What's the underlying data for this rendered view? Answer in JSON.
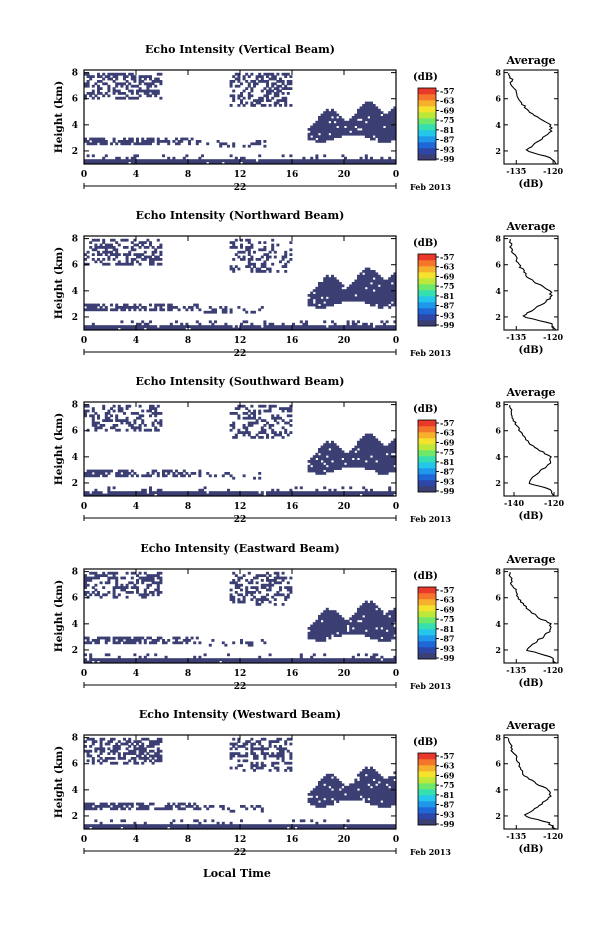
{
  "figure": {
    "xlabel": "Local Time",
    "date_label": "22",
    "month_label": "Feb 2013",
    "ylabel": "Height (km)",
    "colorbar_unit": "(dB)",
    "colorbar_ticks": [
      "-57",
      "-63",
      "-69",
      "-75",
      "-81",
      "-87",
      "-93",
      "-99"
    ],
    "colorscale": [
      "#3c3f73",
      "#2e46a8",
      "#1f66d6",
      "#1f98ec",
      "#22c7ea",
      "#35dfb0",
      "#6ee86b",
      "#bde83a",
      "#f4e22d",
      "#f7b02c",
      "#f5752b",
      "#e9392b"
    ],
    "mask_color": "#3c3f73"
  },
  "chart_data": [
    {
      "type": "heatmap",
      "title": "Echo Intensity (Vertical Beam)",
      "x_ticks": [
        "0",
        "4",
        "8",
        "12",
        "16",
        "20",
        "0"
      ],
      "y_ticks": [
        "2",
        "4",
        "6",
        "8"
      ],
      "xlim": [
        0,
        24
      ],
      "ylim": [
        1,
        8.2
      ],
      "profile": {
        "title": "Average",
        "xlabel": "(dB)",
        "x_ticks": [
          "-135",
          "-120"
        ],
        "xlim": [
          -140,
          -118
        ],
        "y_ticks": [
          "2",
          "4",
          "6",
          "8"
        ],
        "height_km": [
          1,
          1.5,
          2,
          2.5,
          3,
          3.5,
          4,
          4.5,
          5,
          5.5,
          6,
          6.5,
          7,
          7.5,
          8
        ],
        "db": [
          -119,
          -121,
          -131,
          -128,
          -124,
          -121,
          -121,
          -126,
          -130,
          -132,
          -134,
          -135,
          -137,
          -137,
          -138
        ]
      }
    },
    {
      "type": "heatmap",
      "title": "Echo Intensity (Northward Beam)",
      "x_ticks": [
        "0",
        "4",
        "8",
        "12",
        "16",
        "20",
        "0"
      ],
      "y_ticks": [
        "2",
        "4",
        "6",
        "8"
      ],
      "xlim": [
        0,
        24
      ],
      "ylim": [
        1,
        8.2
      ],
      "profile": {
        "title": "Average",
        "xlabel": "(dB)",
        "x_ticks": [
          "-135",
          "-120"
        ],
        "xlim": [
          -140,
          -118
        ],
        "y_ticks": [
          "2",
          "4",
          "6",
          "8"
        ],
        "height_km": [
          1,
          1.5,
          2,
          2.5,
          3,
          3.5,
          4,
          4.5,
          5,
          5.5,
          6,
          6.5,
          7,
          7.5,
          8
        ],
        "db": [
          -119,
          -121,
          -132,
          -129,
          -124,
          -121,
          -121,
          -126,
          -130,
          -132,
          -134,
          -135,
          -137,
          -137,
          -138
        ]
      }
    },
    {
      "type": "heatmap",
      "title": "Echo Intensity (Southward Beam)",
      "x_ticks": [
        "0",
        "4",
        "8",
        "12",
        "16",
        "20",
        "0"
      ],
      "y_ticks": [
        "2",
        "4",
        "6",
        "8"
      ],
      "xlim": [
        0,
        24
      ],
      "ylim": [
        1,
        8.2
      ],
      "profile": {
        "title": "Average",
        "xlabel": "(dB)",
        "x_ticks": [
          "-140",
          "-120"
        ],
        "xlim": [
          -145,
          -118
        ],
        "y_ticks": [
          "2",
          "4",
          "6",
          "8"
        ],
        "height_km": [
          1,
          1.5,
          2,
          2.5,
          3,
          3.5,
          4,
          4.5,
          5,
          5.5,
          6,
          6.5,
          7,
          7.5,
          8
        ],
        "db": [
          -120,
          -122,
          -133,
          -130,
          -126,
          -122,
          -122,
          -127,
          -132,
          -135,
          -137,
          -139,
          -141,
          -141,
          -142
        ]
      }
    },
    {
      "type": "heatmap",
      "title": "Echo Intensity (Eastward Beam)",
      "x_ticks": [
        "0",
        "4",
        "8",
        "12",
        "16",
        "20",
        "0"
      ],
      "y_ticks": [
        "2",
        "4",
        "6",
        "8"
      ],
      "xlim": [
        0,
        24
      ],
      "ylim": [
        1,
        8.2
      ],
      "profile": {
        "title": "Average",
        "xlabel": "(dB)",
        "x_ticks": [
          "-135",
          "-120"
        ],
        "xlim": [
          -140,
          -118
        ],
        "y_ticks": [
          "2",
          "4",
          "6",
          "8"
        ],
        "height_km": [
          1,
          1.5,
          2,
          2.5,
          3,
          3.5,
          4,
          4.5,
          5,
          5.5,
          6,
          6.5,
          7,
          7.5,
          8
        ],
        "db": [
          -119,
          -121,
          -131,
          -128,
          -124,
          -121,
          -121,
          -126,
          -130,
          -132,
          -134,
          -135,
          -137,
          -137,
          -138
        ]
      }
    },
    {
      "type": "heatmap",
      "title": "Echo Intensity (Westward Beam)",
      "x_ticks": [
        "0",
        "4",
        "8",
        "12",
        "16",
        "20",
        "0"
      ],
      "y_ticks": [
        "2",
        "4",
        "6",
        "8"
      ],
      "xlim": [
        0,
        24
      ],
      "ylim": [
        1,
        8.2
      ],
      "profile": {
        "title": "Average",
        "xlabel": "(dB)",
        "x_ticks": [
          "-135",
          "-120"
        ],
        "xlim": [
          -140,
          -118
        ],
        "y_ticks": [
          "2",
          "4",
          "6",
          "8"
        ],
        "height_km": [
          1,
          1.5,
          2,
          2.5,
          3,
          3.5,
          4,
          4.5,
          5,
          5.5,
          6,
          6.5,
          7,
          7.5,
          8
        ],
        "db": [
          -119,
          -122,
          -132,
          -128,
          -124,
          -121,
          -122,
          -127,
          -131,
          -133,
          -134,
          -135,
          -137,
          -137,
          -138
        ]
      }
    }
  ]
}
